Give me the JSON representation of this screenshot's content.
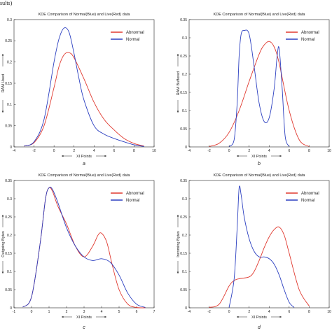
{
  "page_fragment": "sults)",
  "chart_data": [
    {
      "type": "line",
      "panel_label": "a",
      "title": "KDE Comparison of Normal(Blue) and Live(Red) data",
      "xlabel": "XI Points",
      "ylabel": "RAM Used",
      "xlim": [
        -4,
        10
      ],
      "ylim": [
        0,
        0.3
      ],
      "xticks": [
        "-4",
        "-2",
        "0",
        "2",
        "4",
        "6",
        "8",
        "10"
      ],
      "yticks": [
        "0",
        "0.05",
        "0.1",
        "0.15",
        "0.2",
        "0.25",
        "0.3"
      ],
      "grid": false,
      "legend": "top-right",
      "series": [
        {
          "name": "Abnormal",
          "color": "#e0392f",
          "x": [
            -3,
            -2,
            -1,
            0,
            0.5,
            1,
            1.5,
            2,
            3,
            4,
            5,
            6,
            7,
            8,
            9
          ],
          "y": [
            0.002,
            0.01,
            0.05,
            0.14,
            0.19,
            0.217,
            0.222,
            0.21,
            0.16,
            0.105,
            0.065,
            0.04,
            0.02,
            0.008,
            0.002
          ]
        },
        {
          "name": "Normal",
          "color": "#2b3fc0",
          "x": [
            -3,
            -2,
            -1,
            0,
            0.5,
            1,
            1.5,
            2,
            2.5,
            3,
            4,
            5,
            6,
            7,
            8,
            9
          ],
          "y": [
            0.002,
            0.012,
            0.065,
            0.2,
            0.255,
            0.28,
            0.27,
            0.22,
            0.16,
            0.11,
            0.05,
            0.03,
            0.02,
            0.012,
            0.005,
            0.001
          ]
        }
      ]
    },
    {
      "type": "line",
      "panel_label": "b",
      "title": "KDE Comparison of Normal(Blue) and Live(Red) data",
      "xlabel": "XI Points",
      "ylabel": "RAM Buffered",
      "xlim": [
        -4,
        10
      ],
      "ylim": [
        0,
        0.35
      ],
      "xticks": [
        "-4",
        "-2",
        "0",
        "2",
        "4",
        "6",
        "8",
        "10"
      ],
      "yticks": [
        "0",
        "0.05",
        "0.1",
        "0.15",
        "0.2",
        "0.25",
        "0.3",
        "0.35"
      ],
      "grid": false,
      "legend": "top-right",
      "series": [
        {
          "name": "Abnormal",
          "color": "#e0392f",
          "x": [
            -2,
            -1,
            0,
            1,
            2,
            3,
            3.5,
            4,
            4.5,
            5,
            6,
            7,
            8
          ],
          "y": [
            0.001,
            0.01,
            0.04,
            0.1,
            0.18,
            0.255,
            0.28,
            0.29,
            0.275,
            0.23,
            0.1,
            0.02,
            0.001
          ]
        },
        {
          "name": "Normal",
          "color": "#2b3fc0",
          "x": [
            0,
            0.5,
            0.8,
            1,
            1.2,
            1.5,
            2,
            2.5,
            3,
            3.5,
            4,
            4.5,
            4.8,
            5,
            5.3,
            5.6,
            6
          ],
          "y": [
            0.001,
            0.02,
            0.12,
            0.25,
            0.31,
            0.32,
            0.31,
            0.22,
            0.12,
            0.07,
            0.08,
            0.16,
            0.25,
            0.27,
            0.16,
            0.03,
            0.001
          ]
        }
      ]
    },
    {
      "type": "line",
      "panel_label": "c",
      "title": "KDE Comparison of Normal(Blue) and Live(Red) data",
      "xlabel": "XI Points",
      "ylabel": "Outgoing Bytes",
      "xlim": [
        -1,
        7
      ],
      "ylim": [
        0,
        0.35
      ],
      "xticks": [
        "-1",
        "0",
        "1",
        "2",
        "3",
        "4",
        "5",
        "6",
        "7"
      ],
      "yticks": [
        "0",
        "0.05",
        "0.1",
        "0.15",
        "0.2",
        "0.25",
        "0.3",
        "0.35"
      ],
      "grid": false,
      "legend": "top-right",
      "series": [
        {
          "name": "Abnormal",
          "color": "#e0392f",
          "x": [
            -0.5,
            0,
            0.5,
            0.8,
            1,
            1.2,
            1.5,
            2,
            2.5,
            3,
            3.5,
            3.8,
            4,
            4.3,
            4.6,
            5,
            5.5,
            6,
            6.5
          ],
          "y": [
            0.002,
            0.03,
            0.18,
            0.3,
            0.33,
            0.32,
            0.28,
            0.23,
            0.17,
            0.14,
            0.17,
            0.2,
            0.205,
            0.18,
            0.12,
            0.05,
            0.01,
            0.001,
            0
          ]
        },
        {
          "name": "Normal",
          "color": "#2b3fc0",
          "x": [
            -0.5,
            0,
            0.5,
            0.8,
            1,
            1.2,
            1.5,
            2,
            2.5,
            3,
            3.5,
            4,
            4.5,
            5,
            5.5,
            6,
            6.5
          ],
          "y": [
            0.002,
            0.03,
            0.18,
            0.3,
            0.33,
            0.325,
            0.29,
            0.22,
            0.17,
            0.14,
            0.13,
            0.135,
            0.125,
            0.09,
            0.04,
            0.01,
            0.001
          ]
        }
      ]
    },
    {
      "type": "line",
      "panel_label": "d",
      "title": "KDE Comparison of Normal(Blue) and Live(Red) data",
      "xlabel": "XI Points",
      "ylabel": "Incoming Bytes",
      "xlim": [
        -4,
        10
      ],
      "ylim": [
        0,
        0.35
      ],
      "xticks": [
        "-4",
        "-2",
        "0",
        "2",
        "4",
        "6",
        "8",
        "10"
      ],
      "yticks": [
        "0",
        "0.05",
        "0.1",
        "0.15",
        "0.2",
        "0.25",
        "0.3",
        "0.35"
      ],
      "grid": false,
      "legend": "top-right",
      "series": [
        {
          "name": "Abnormal",
          "color": "#e0392f",
          "x": [
            -2,
            -1,
            0,
            0.5,
            1,
            2,
            2.5,
            3,
            3.5,
            4,
            4.5,
            5,
            5.5,
            6,
            7,
            8
          ],
          "y": [
            0.001,
            0.01,
            0.06,
            0.075,
            0.08,
            0.085,
            0.1,
            0.13,
            0.165,
            0.195,
            0.215,
            0.222,
            0.2,
            0.15,
            0.05,
            0.005
          ]
        },
        {
          "name": "Normal",
          "color": "#2b3fc0",
          "x": [
            0,
            0.5,
            0.8,
            1,
            1.2,
            1.5,
            2,
            2.5,
            3,
            3.5,
            4,
            4.5,
            5,
            5.5,
            6,
            6.5
          ],
          "y": [
            0.001,
            0.08,
            0.22,
            0.33,
            0.31,
            0.25,
            0.19,
            0.155,
            0.14,
            0.14,
            0.135,
            0.12,
            0.09,
            0.05,
            0.015,
            0.001
          ]
        }
      ]
    }
  ]
}
